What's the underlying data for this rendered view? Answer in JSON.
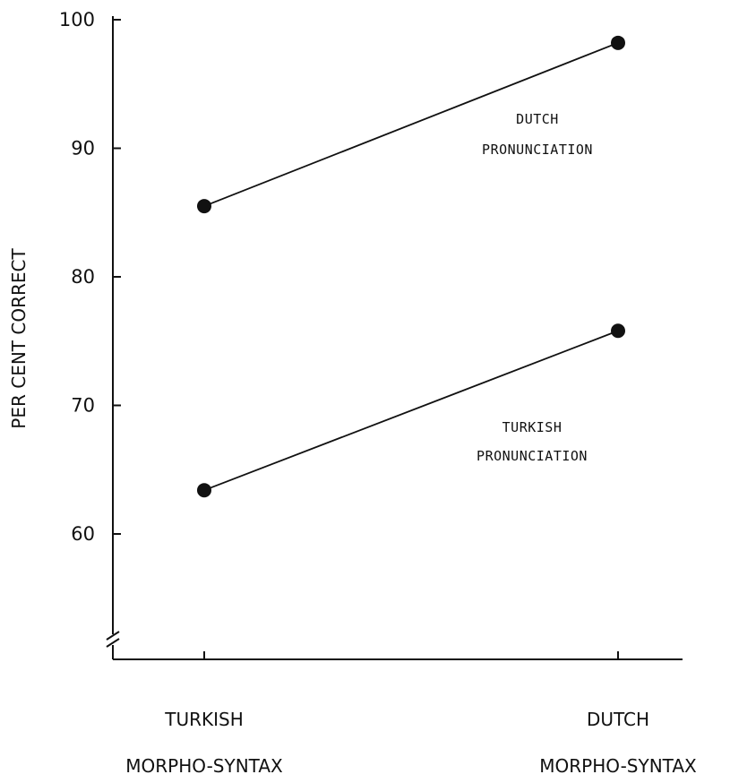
{
  "chart_data": {
    "type": "line",
    "categories": [
      [
        "TURKISH",
        "MORPHO-SYNTAX"
      ],
      [
        "DUTCH",
        "MORPHO-SYNTAX"
      ]
    ],
    "series": [
      {
        "label_lines": [
          "DUTCH",
          "PRONUNCIATION"
        ],
        "values": [
          85.5,
          98.2
        ]
      },
      {
        "label_lines": [
          "TURKISH",
          "PRONUNCIATION"
        ],
        "values": [
          63.4,
          75.8
        ]
      }
    ],
    "ylabel": "PER CENT CORRECT",
    "xlabel": "",
    "yticks": [
      60,
      70,
      80,
      90,
      100
    ],
    "ylim": [
      50,
      100
    ],
    "y_axis_break": true,
    "grid": false,
    "colors": {
      "line": "#111111",
      "marker": "#111111",
      "background": "#ffffff"
    }
  }
}
